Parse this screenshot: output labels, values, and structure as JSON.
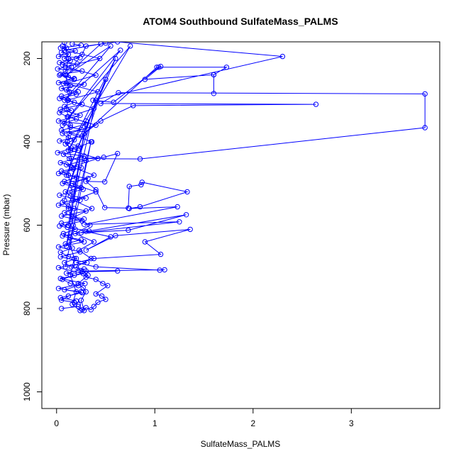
{
  "chart_data": {
    "type": "line",
    "title": "ATOM4 Southbound SulfateMass_PALMS",
    "xlabel": "SulfateMass_PALMS",
    "ylabel": "Pressure (mbar)",
    "xlim": [
      -0.15,
      3.9
    ],
    "ylim": [
      160,
      1040
    ],
    "y_reversed": true,
    "x_ticks": [
      0,
      1,
      2,
      3
    ],
    "y_ticks": [
      200,
      400,
      600,
      800,
      1000
    ],
    "grid": false,
    "legend": "none",
    "color": "#0000ff",
    "marker": "open-circle",
    "series": [
      {
        "points": [
          [
            0.05,
            800
          ],
          [
            0.22,
            795
          ],
          [
            0.26,
            803
          ],
          [
            0.3,
            798
          ],
          [
            0.35,
            803
          ],
          [
            0.38,
            795
          ],
          [
            0.42,
            785
          ],
          [
            0.5,
            778
          ],
          [
            0.46,
            770
          ],
          [
            0.4,
            765
          ],
          [
            0.52,
            745
          ],
          [
            0.47,
            740
          ],
          [
            0.4,
            730
          ],
          [
            0.3,
            725
          ],
          [
            0.26,
            712
          ],
          [
            0.62,
            710
          ],
          [
            0.22,
            712
          ],
          [
            0.3,
            710
          ],
          [
            1.1,
            707
          ],
          [
            1.05,
            708
          ],
          [
            0.4,
            700
          ],
          [
            0.2,
            690
          ],
          [
            0.38,
            680
          ],
          [
            1.06,
            670
          ],
          [
            0.9,
            640
          ],
          [
            1.36,
            610
          ],
          [
            0.6,
            625
          ],
          [
            0.3,
            660
          ],
          [
            0.55,
            628
          ],
          [
            0.3,
            615
          ],
          [
            1.32,
            575
          ],
          [
            0.73,
            612
          ],
          [
            0.25,
            618
          ],
          [
            1.25,
            592
          ],
          [
            0.28,
            598
          ],
          [
            1.23,
            556
          ],
          [
            0.74,
            560
          ],
          [
            0.85,
            556
          ],
          [
            1.33,
            520
          ],
          [
            0.87,
            497
          ],
          [
            0.86,
            503
          ],
          [
            0.74,
            507
          ],
          [
            0.73,
            559
          ],
          [
            0.49,
            558
          ],
          [
            0.4,
            515
          ],
          [
            0.3,
            495
          ],
          [
            0.49,
            496
          ],
          [
            0.62,
            428
          ],
          [
            0.48,
            437
          ],
          [
            0.28,
            440
          ],
          [
            0.85,
            441
          ],
          [
            3.75,
            366
          ],
          [
            3.75,
            285
          ],
          [
            0.63,
            282
          ],
          [
            0.45,
            308
          ],
          [
            2.64,
            310
          ],
          [
            0.78,
            313
          ],
          [
            0.45,
            350
          ],
          [
            0.28,
            380
          ],
          [
            1.02,
            221
          ],
          [
            1.06,
            219
          ],
          [
            0.9,
            250
          ],
          [
            1.6,
            239
          ],
          [
            1.6,
            284
          ],
          [
            1.6,
            239
          ],
          [
            1.73,
            221
          ],
          [
            1.04,
            221
          ],
          [
            0.58,
            305
          ],
          [
            0.37,
            300
          ],
          [
            2.3,
            195
          ],
          [
            0.62,
            160
          ],
          [
            0.3,
            170
          ],
          [
            0.26,
            190
          ],
          [
            0.2,
            200
          ]
        ]
      },
      {
        "points": [
          [
            0.06,
            170
          ],
          [
            0.1,
            175
          ],
          [
            0.05,
            185
          ],
          [
            0.12,
            190
          ],
          [
            0.08,
            200
          ],
          [
            0.14,
            205
          ],
          [
            0.06,
            215
          ],
          [
            0.15,
            220
          ],
          [
            0.09,
            230
          ],
          [
            0.03,
            240
          ],
          [
            0.12,
            245
          ],
          [
            0.18,
            250
          ],
          [
            0.07,
            260
          ],
          [
            0.14,
            265
          ],
          [
            0.1,
            275
          ],
          [
            0.22,
            280
          ],
          [
            0.05,
            290
          ],
          [
            0.12,
            300
          ],
          [
            0.18,
            305
          ],
          [
            0.08,
            315
          ],
          [
            0.15,
            325
          ],
          [
            0.03,
            330
          ],
          [
            0.11,
            340
          ],
          [
            0.2,
            345
          ],
          [
            0.08,
            355
          ],
          [
            0.14,
            365
          ],
          [
            0.25,
            370
          ],
          [
            0.06,
            380
          ],
          [
            0.12,
            390
          ],
          [
            0.18,
            395
          ],
          [
            0.09,
            405
          ],
          [
            0.15,
            415
          ],
          [
            0.22,
            420
          ],
          [
            0.07,
            430
          ],
          [
            0.13,
            440
          ],
          [
            0.3,
            445
          ],
          [
            0.1,
            455
          ],
          [
            0.17,
            465
          ],
          [
            0.05,
            470
          ],
          [
            0.12,
            480
          ],
          [
            0.2,
            485
          ],
          [
            0.08,
            495
          ],
          [
            0.15,
            505
          ],
          [
            0.25,
            510
          ],
          [
            0.09,
            520
          ],
          [
            0.14,
            530
          ],
          [
            0.3,
            535
          ],
          [
            0.06,
            545
          ],
          [
            0.12,
            555
          ],
          [
            0.18,
            560
          ],
          [
            0.08,
            570
          ],
          [
            0.16,
            580
          ],
          [
            0.28,
            585
          ],
          [
            0.05,
            595
          ],
          [
            0.11,
            605
          ],
          [
            0.19,
            610
          ],
          [
            0.07,
            620
          ],
          [
            0.14,
            630
          ],
          [
            0.25,
            635
          ],
          [
            0.09,
            645
          ],
          [
            0.16,
            655
          ],
          [
            0.04,
            665
          ],
          [
            0.12,
            675
          ],
          [
            0.2,
            680
          ],
          [
            0.08,
            690
          ],
          [
            0.15,
            700
          ],
          [
            0.28,
            705
          ],
          [
            0.1,
            715
          ],
          [
            0.18,
            720
          ],
          [
            0.06,
            730
          ],
          [
            0.14,
            740
          ],
          [
            0.22,
            745
          ],
          [
            0.08,
            755
          ],
          [
            0.25,
            760
          ],
          [
            0.12,
            770
          ],
          [
            0.05,
            780
          ],
          [
            0.18,
            785
          ],
          [
            0.22,
            790
          ]
        ]
      },
      {
        "points": [
          [
            0.16,
            165
          ],
          [
            0.25,
            168
          ],
          [
            0.04,
            175
          ],
          [
            0.19,
            182
          ],
          [
            0.02,
            195
          ],
          [
            0.24,
            198
          ],
          [
            0.03,
            210
          ],
          [
            0.21,
            213
          ],
          [
            0.01,
            225
          ],
          [
            0.26,
            230
          ],
          [
            0.04,
            238
          ],
          [
            0.18,
            248
          ],
          [
            0.02,
            258
          ],
          [
            0.28,
            262
          ],
          [
            0.05,
            272
          ],
          [
            0.2,
            286
          ],
          [
            0.03,
            296
          ],
          [
            0.26,
            310
          ],
          [
            0.04,
            322
          ],
          [
            0.24,
            336
          ],
          [
            0.02,
            350
          ],
          [
            0.3,
            358
          ],
          [
            0.05,
            372
          ],
          [
            0.26,
            386
          ],
          [
            0.03,
            398
          ],
          [
            0.22,
            410
          ],
          [
            0.01,
            426
          ],
          [
            0.28,
            434
          ],
          [
            0.04,
            450
          ],
          [
            0.25,
            462
          ],
          [
            0.02,
            476
          ],
          [
            0.32,
            488
          ],
          [
            0.06,
            500
          ],
          [
            0.27,
            514
          ],
          [
            0.03,
            528
          ],
          [
            0.24,
            540
          ],
          [
            0.02,
            552
          ],
          [
            0.3,
            566
          ],
          [
            0.05,
            578
          ],
          [
            0.26,
            590
          ],
          [
            0.03,
            602
          ],
          [
            0.33,
            614
          ],
          [
            0.06,
            626
          ],
          [
            0.28,
            640
          ],
          [
            0.02,
            652
          ],
          [
            0.24,
            664
          ],
          [
            0.04,
            676
          ],
          [
            0.31,
            690
          ],
          [
            0.02,
            702
          ],
          [
            0.27,
            716
          ],
          [
            0.04,
            728
          ],
          [
            0.29,
            740
          ],
          [
            0.02,
            752
          ],
          [
            0.26,
            762
          ],
          [
            0.04,
            774
          ],
          [
            0.2,
            782
          ]
        ]
      },
      {
        "points": [
          [
            0.08,
            162
          ],
          [
            0.12,
            200
          ],
          [
            0.09,
            240
          ],
          [
            0.13,
            280
          ],
          [
            0.1,
            320
          ],
          [
            0.14,
            360
          ],
          [
            0.11,
            400
          ],
          [
            0.15,
            440
          ],
          [
            0.12,
            480
          ],
          [
            0.16,
            520
          ],
          [
            0.12,
            560
          ],
          [
            0.17,
            600
          ],
          [
            0.13,
            640
          ],
          [
            0.18,
            680
          ],
          [
            0.14,
            720
          ],
          [
            0.2,
            760
          ],
          [
            0.16,
            790
          ],
          [
            0.24,
            805
          ],
          [
            0.28,
            805
          ],
          [
            0.25,
            780
          ],
          [
            0.3,
            760
          ],
          [
            0.27,
            750
          ],
          [
            0.22,
            740
          ],
          [
            0.32,
            720
          ],
          [
            0.2,
            700
          ],
          [
            0.35,
            680
          ],
          [
            0.23,
            660
          ],
          [
            0.38,
            640
          ],
          [
            0.19,
            620
          ],
          [
            0.34,
            600
          ],
          [
            0.18,
            580
          ],
          [
            0.36,
            560
          ],
          [
            0.17,
            540
          ],
          [
            0.4,
            520
          ],
          [
            0.16,
            500
          ],
          [
            0.38,
            480
          ],
          [
            0.15,
            460
          ],
          [
            0.42,
            440
          ],
          [
            0.14,
            420
          ],
          [
            0.36,
            400
          ],
          [
            0.13,
            380
          ],
          [
            0.4,
            360
          ],
          [
            0.12,
            340
          ],
          [
            0.38,
            320
          ],
          [
            0.11,
            300
          ],
          [
            0.42,
            280
          ],
          [
            0.1,
            260
          ],
          [
            0.4,
            240
          ],
          [
            0.09,
            220
          ],
          [
            0.44,
            200
          ],
          [
            0.08,
            180
          ],
          [
            0.5,
            163
          ]
        ]
      },
      {
        "points": [
          [
            0.45,
            165
          ],
          [
            0.1,
            240
          ],
          [
            0.55,
            170
          ],
          [
            0.08,
            300
          ],
          [
            0.65,
            180
          ],
          [
            0.06,
            360
          ],
          [
            0.75,
            170
          ],
          [
            0.12,
            420
          ],
          [
            0.6,
            200
          ],
          [
            0.1,
            480
          ],
          [
            0.5,
            250
          ],
          [
            0.08,
            540
          ],
          [
            0.4,
            300
          ],
          [
            0.12,
            600
          ],
          [
            0.3,
            350
          ],
          [
            0.1,
            650
          ],
          [
            0.35,
            400
          ],
          [
            0.09,
            700
          ]
        ]
      }
    ]
  }
}
